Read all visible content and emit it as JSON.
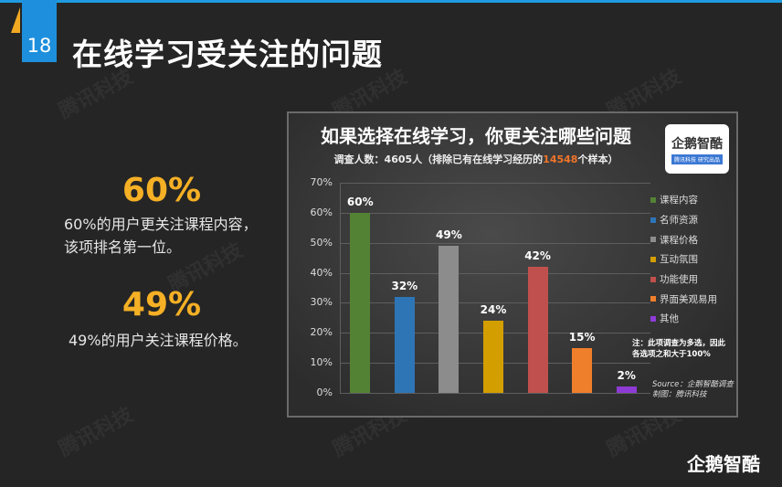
{
  "slide": {
    "page_number": "18",
    "title": "在线学习受关注的问题",
    "accent_colors": {
      "blue": "#1d8fdc",
      "orange": "#f2a922",
      "background": "#252525"
    }
  },
  "watermarks": [
    "腾讯科技",
    "腾讯科技",
    "腾讯科技",
    "腾讯科技",
    "腾讯科技",
    "腾讯科技",
    "腾讯科技",
    "腾讯科技"
  ],
  "highlights": [
    {
      "value": "60%",
      "text_line1": "60%的用户更关注课程内容，",
      "text_line2": "该项排名第一位。"
    },
    {
      "value": "49%",
      "text_line1": "49%的用户关注课程价格。",
      "text_line2": ""
    }
  ],
  "chart_panel": {
    "title": "如果选择在线学习，你更关注哪些问题",
    "subtitle_prefix": "调查人数：4605人（排除已有在线学习经历的",
    "subtitle_highlight": "14548",
    "subtitle_suffix": "个样本）",
    "logo_text": "企鹅智酷",
    "logo_sub": "腾讯科技 研究出品",
    "note": "注：此项调查为多选，因此各选项之和大于100%",
    "source_line1": "Source：企鹅智酷调查",
    "source_line2": "制图：腾讯科技"
  },
  "chart_data": {
    "type": "bar",
    "title": "如果选择在线学习，你更关注哪些问题",
    "subtitle": "调查人数：4605人（排除已有在线学习经历的14548个样本）",
    "categories": [
      "课程内容",
      "名师资源",
      "课程价格",
      "互动氛围",
      "功能使用",
      "界面美观易用",
      "其他"
    ],
    "values": [
      60,
      32,
      49,
      24,
      42,
      15,
      2
    ],
    "value_labels": [
      "60%",
      "32%",
      "49%",
      "24%",
      "42%",
      "15%",
      "2%"
    ],
    "colors": [
      "#548235",
      "#2e75b6",
      "#8c8c8c",
      "#d39e00",
      "#c0504d",
      "#f07f2c",
      "#8e3bd6"
    ],
    "yticks": [
      "0%",
      "10%",
      "20%",
      "30%",
      "40%",
      "50%",
      "60%",
      "70%"
    ],
    "ylim": [
      0,
      70
    ],
    "xlabel": "",
    "ylabel": "",
    "grid": true,
    "legend_position": "right"
  },
  "footer": {
    "brand": "企鹅智酷"
  }
}
